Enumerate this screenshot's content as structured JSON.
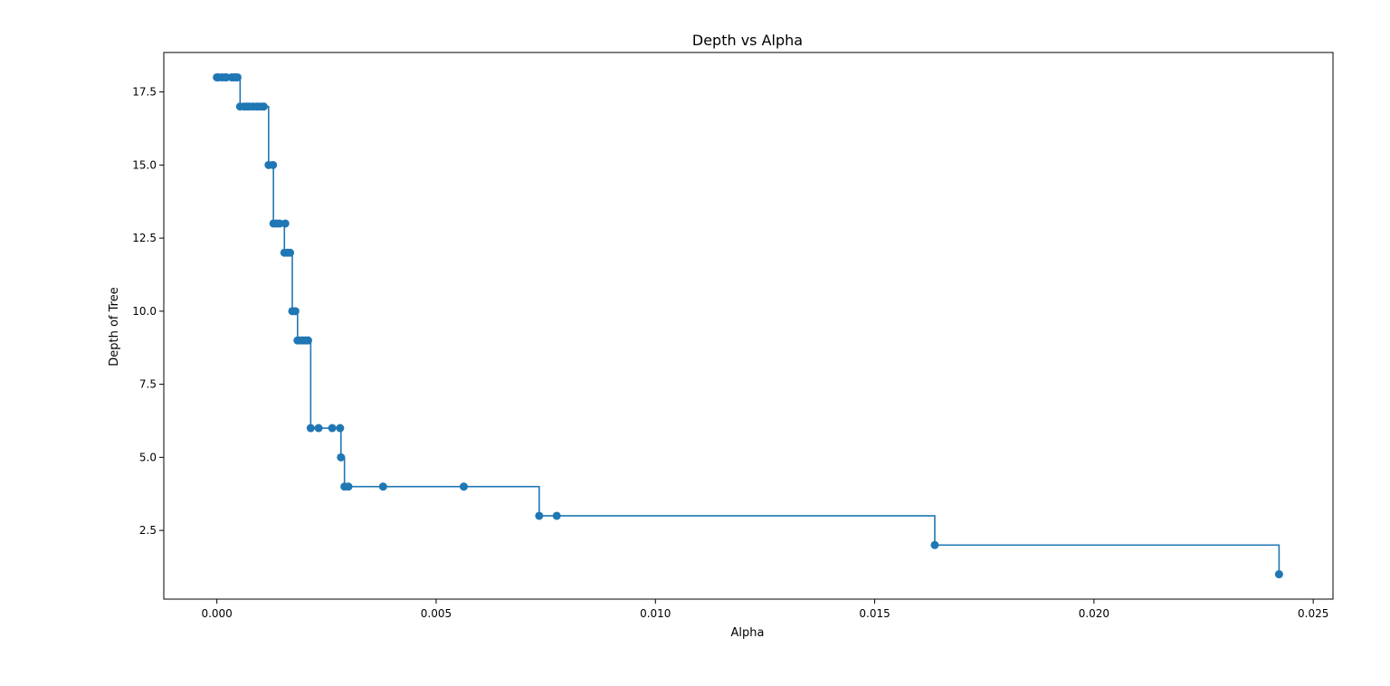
{
  "chart_data": {
    "type": "line",
    "title": "Depth vs Alpha",
    "xlabel": "Alpha",
    "ylabel": "Depth of Tree",
    "xlim": [
      -0.00121,
      0.02545
    ],
    "ylim": [
      0.15,
      18.85
    ],
    "grid": false,
    "drawstyle": "steps-post",
    "marker": "circle",
    "color": "#1f77b4",
    "x_ticks": [
      0.0,
      0.005,
      0.01,
      0.015,
      0.02,
      0.025
    ],
    "x_tick_labels": [
      "0.000",
      "0.005",
      "0.010",
      "0.015",
      "0.020",
      "0.025"
    ],
    "y_ticks": [
      2.5,
      5.0,
      7.5,
      10.0,
      12.5,
      15.0,
      17.5
    ],
    "y_tick_labels": [
      "2.5",
      "5.0",
      "7.5",
      "10.0",
      "12.5",
      "15.0",
      "17.5"
    ],
    "series": [
      {
        "x": [
          0.0,
          4e-05,
          0.00012,
          0.00018,
          0.00022,
          0.00034,
          0.00039,
          0.00043,
          0.00047,
          0.00053,
          0.00062,
          0.00068,
          0.00074,
          0.00082,
          0.0009,
          0.00094,
          0.00101,
          0.00107,
          0.00118,
          0.00128,
          0.00129,
          0.00136,
          0.00143,
          0.00156,
          0.00154,
          0.00161,
          0.00167,
          0.00172,
          0.00179,
          0.00184,
          0.0019,
          0.00196,
          0.00202,
          0.00208,
          0.00214,
          0.00232,
          0.00263,
          0.00281,
          0.00283,
          0.00291,
          0.003,
          0.00379,
          0.00563,
          0.00735,
          0.00775,
          0.01637,
          0.02422
        ],
        "y": [
          18,
          18,
          18,
          18,
          18,
          18,
          18,
          18,
          18,
          17,
          17,
          17,
          17,
          17,
          17,
          17,
          17,
          17,
          15,
          15,
          13,
          13,
          13,
          13,
          12,
          12,
          12,
          10,
          10,
          9,
          9,
          9,
          9,
          9,
          6,
          6,
          6,
          6,
          5,
          4,
          4,
          4,
          4,
          3,
          3,
          2,
          1
        ]
      }
    ]
  }
}
